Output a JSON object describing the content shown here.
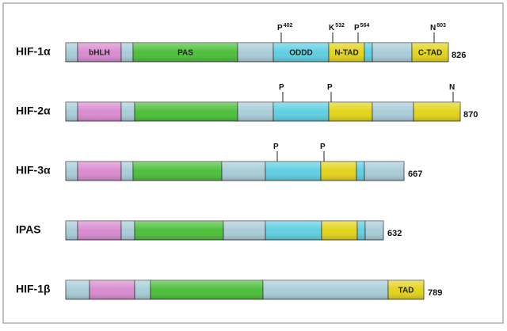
{
  "proteins": [
    {
      "name": "HIF-1α",
      "length": "826",
      "domains": [
        {
          "label": "bHLH"
        },
        {
          "label": "PAS"
        },
        {
          "label": "ODDD"
        },
        {
          "label": "N-TAD"
        },
        {
          "label": "C-TAD"
        }
      ],
      "sites": [
        {
          "residue": "P",
          "position": "402"
        },
        {
          "residue": "K",
          "position": "532"
        },
        {
          "residue": "P",
          "position": "564"
        },
        {
          "residue": "N",
          "position": "803"
        }
      ]
    },
    {
      "name": "HIF-2α",
      "length": "870",
      "sites": [
        {
          "residue": "P"
        },
        {
          "residue": "P"
        },
        {
          "residue": "N"
        }
      ]
    },
    {
      "name": "HIF-3α",
      "length": "667",
      "sites": [
        {
          "residue": "P"
        },
        {
          "residue": "P"
        }
      ]
    },
    {
      "name": "IPAS",
      "length": "632"
    },
    {
      "name": "HIF-1β",
      "length": "789",
      "domains": [
        {
          "label": "TAD"
        }
      ]
    }
  ]
}
